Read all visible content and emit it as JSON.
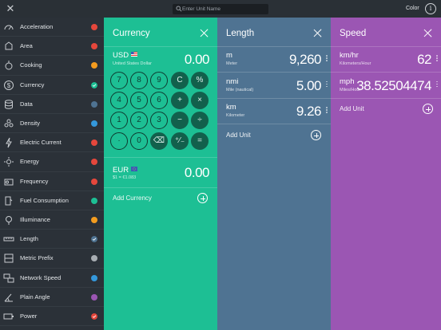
{
  "topbar": {
    "close_icon": "close-icon",
    "search_placeholder": "Enter Unit Name",
    "color_label": "Color",
    "info_label": "i"
  },
  "sidebar": {
    "items": [
      {
        "label": "Acceleration",
        "icon": "speedometer-icon",
        "dot": "#e5473c",
        "checked": false
      },
      {
        "label": "Area",
        "icon": "area-icon",
        "dot": "#e5473c",
        "checked": false
      },
      {
        "label": "Cooking",
        "icon": "cooking-icon",
        "dot": "#f39c1f",
        "checked": false
      },
      {
        "label": "Currency",
        "icon": "dollar-icon",
        "dot": "#1dbf94",
        "checked": true
      },
      {
        "label": "Data",
        "icon": "database-icon",
        "dot": "#4f7392",
        "checked": false
      },
      {
        "label": "Density",
        "icon": "density-icon",
        "dot": "#3498db",
        "checked": false
      },
      {
        "label": "Electric Current",
        "icon": "lightning-icon",
        "dot": "#e5473c",
        "checked": false
      },
      {
        "label": "Energy",
        "icon": "sun-icon",
        "dot": "#e5473c",
        "checked": false
      },
      {
        "label": "Frequency",
        "icon": "radio-icon",
        "dot": "#e5473c",
        "checked": false
      },
      {
        "label": "Fuel Consumption",
        "icon": "fuel-icon",
        "dot": "#1dbf94",
        "checked": false
      },
      {
        "label": "Illuminance",
        "icon": "bulb-icon",
        "dot": "#f39c1f",
        "checked": false
      },
      {
        "label": "Length",
        "icon": "ruler-icon",
        "dot": "#4f7392",
        "checked": true
      },
      {
        "label": "Metric Prefix",
        "icon": "metric-prefix-icon",
        "dot": "#a8adb2",
        "checked": false
      },
      {
        "label": "Network Speed",
        "icon": "network-icon",
        "dot": "#3498db",
        "checked": false
      },
      {
        "label": "Plain Angle",
        "icon": "angle-icon",
        "dot": "#9b56b3",
        "checked": false
      },
      {
        "label": "Power",
        "icon": "battery-icon",
        "dot": "#e5473c",
        "checked": true
      }
    ]
  },
  "currency": {
    "title": "Currency",
    "color": "#1dbf94",
    "units": [
      {
        "abbr": "USD",
        "name": "United States Dollar",
        "value": "0.00"
      },
      {
        "abbr": "EUR",
        "name": "$1 = €1.083",
        "value": "0.00"
      }
    ],
    "keypad": [
      [
        "7",
        "8",
        "9",
        "C",
        "%"
      ],
      [
        "4",
        "5",
        "6",
        "+",
        "×"
      ],
      [
        "1",
        "2",
        "3",
        "−",
        "÷"
      ],
      [
        "·",
        "0",
        "⌫",
        "⁺⁄₋",
        "="
      ]
    ],
    "add_label": "Add Currency"
  },
  "length": {
    "title": "Length",
    "color": "#4f7392",
    "units": [
      {
        "abbr": "m",
        "name": "Meter",
        "value": "9,260"
      },
      {
        "abbr": "nmi",
        "name": "Mile (nautical)",
        "value": "5.00"
      },
      {
        "abbr": "km",
        "name": "Kilometer",
        "value": "9.26"
      }
    ],
    "add_label": "Add Unit"
  },
  "speed": {
    "title": "Speed",
    "color": "#9b56b3",
    "units": [
      {
        "abbr": "km/hr",
        "name": "Kilometers/Hour",
        "value": "62"
      },
      {
        "abbr": "mph",
        "name": "Miles/Hour",
        "value": "38.52504474"
      }
    ],
    "add_label": "Add Unit"
  }
}
